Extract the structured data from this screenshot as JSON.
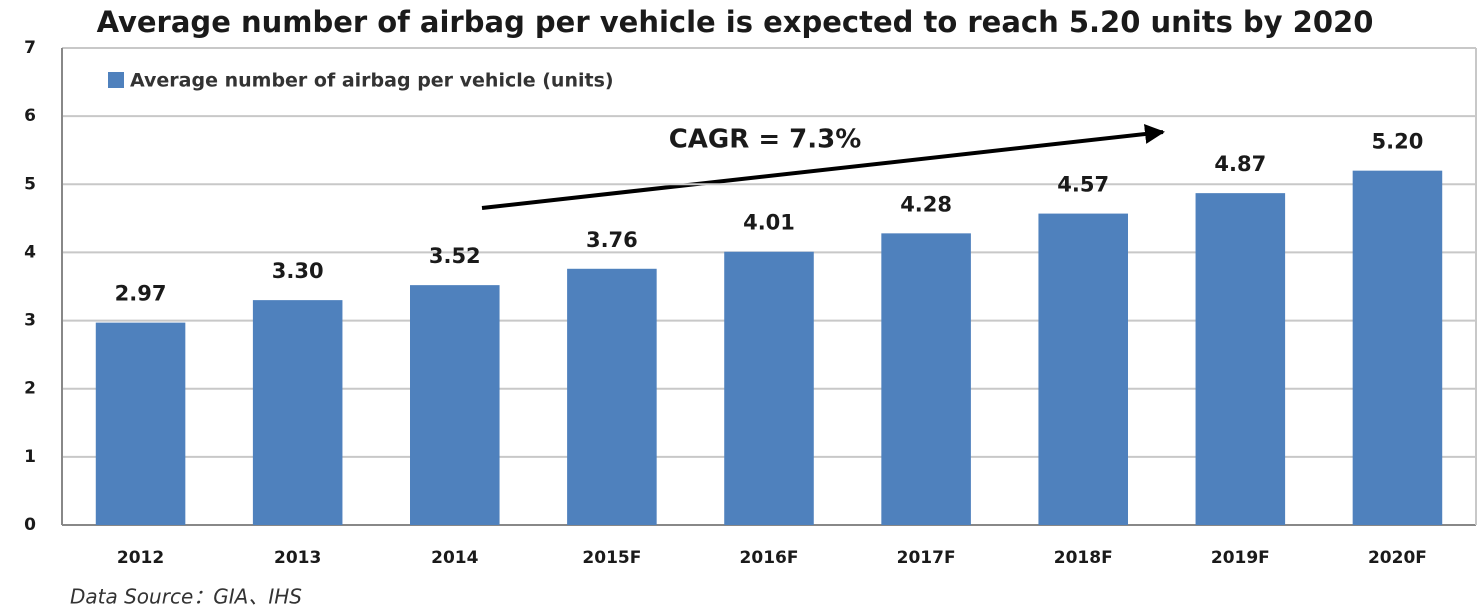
{
  "chart_data": {
    "type": "bar",
    "title": "Average number of airbag per vehicle is expected to reach 5.20 units by 2020",
    "categories": [
      "2012",
      "2013",
      "2014",
      "2015F",
      "2016F",
      "2017F",
      "2018F",
      "2019F",
      "2020F"
    ],
    "series": [
      {
        "name": "Average number of airbag per vehicle (units)",
        "color": "#4f81bd",
        "values": [
          2.97,
          3.3,
          3.52,
          3.76,
          4.01,
          4.28,
          4.57,
          4.87,
          5.2
        ],
        "value_labels": [
          "2.97",
          "3.30",
          "3.52",
          "3.76",
          "4.01",
          "4.28",
          "4.57",
          "4.87",
          "5.20"
        ]
      }
    ],
    "ylim": [
      0,
      7
    ],
    "yticks": [
      0,
      1,
      2,
      3,
      4,
      5,
      6,
      7
    ],
    "grid": true,
    "legend": "top-left",
    "annotation": "CAGR = 7.3%",
    "source": "Data Source：GIA、IHS"
  }
}
